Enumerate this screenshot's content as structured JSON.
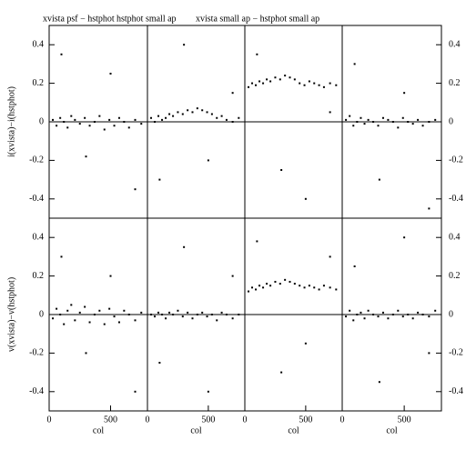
{
  "chart_data": [
    {
      "type": "scatter",
      "title": "xvista psf − hstphot",
      "ylabel": "i(xvista)−i(hstphot)",
      "xlim": [
        0,
        800
      ],
      "ylim": [
        -0.5,
        0.5
      ],
      "yticks": [
        -0.4,
        -0.2,
        0,
        0.2,
        0.4
      ],
      "hline": 0,
      "color": "#000000",
      "x": [
        30,
        60,
        90,
        120,
        150,
        180,
        210,
        250,
        290,
        330,
        370,
        410,
        450,
        490,
        530,
        570,
        610,
        650,
        700,
        750,
        100,
        300,
        500,
        700
      ],
      "y": [
        0.01,
        -0.02,
        0.02,
        0.0,
        -0.03,
        0.03,
        0.01,
        -0.01,
        0.02,
        -0.02,
        0.0,
        0.03,
        -0.04,
        0.01,
        -0.02,
        0.02,
        0.0,
        -0.03,
        0.01,
        -0.01,
        0.35,
        -0.18,
        0.25,
        -0.35
      ]
    },
    {
      "type": "scatter",
      "title": "hstphot small ap",
      "xlim": [
        0,
        800
      ],
      "ylim": [
        -0.5,
        0.5
      ],
      "hline": 0,
      "color": "#000000",
      "x": [
        30,
        60,
        90,
        120,
        150,
        180,
        210,
        250,
        290,
        330,
        370,
        410,
        450,
        490,
        530,
        570,
        610,
        650,
        700,
        750,
        100,
        300,
        500,
        700
      ],
      "y": [
        0.02,
        0.0,
        0.03,
        0.01,
        0.02,
        0.04,
        0.03,
        0.05,
        0.04,
        0.06,
        0.05,
        0.07,
        0.06,
        0.05,
        0.04,
        0.02,
        0.03,
        0.01,
        0.0,
        0.02,
        -0.3,
        0.4,
        -0.2,
        0.15
      ]
    },
    {
      "type": "scatter",
      "title": "xvista small ap − hstphot small ap",
      "xlim": [
        0,
        800
      ],
      "ylim": [
        -0.5,
        0.5
      ],
      "hline": 0,
      "color": "#000000",
      "x": [
        30,
        60,
        90,
        120,
        150,
        180,
        210,
        250,
        290,
        330,
        370,
        410,
        450,
        490,
        530,
        570,
        610,
        650,
        700,
        750,
        100,
        300,
        500,
        700
      ],
      "y": [
        0.18,
        0.2,
        0.19,
        0.21,
        0.2,
        0.22,
        0.21,
        0.23,
        0.22,
        0.24,
        0.23,
        0.22,
        0.2,
        0.19,
        0.21,
        0.2,
        0.19,
        0.18,
        0.2,
        0.19,
        0.35,
        -0.25,
        -0.4,
        0.05
      ]
    },
    {
      "type": "scatter",
      "xlim": [
        0,
        800
      ],
      "ylim": [
        -0.5,
        0.5
      ],
      "y2lim": [
        -0.5,
        0.5
      ],
      "y2ticks": [
        -0.4,
        -0.2,
        0,
        0.2,
        0.4
      ],
      "hline": 0,
      "color": "#000000",
      "x": [
        30,
        60,
        90,
        120,
        150,
        180,
        210,
        250,
        290,
        330,
        370,
        410,
        450,
        490,
        530,
        570,
        610,
        650,
        700,
        750,
        100,
        300,
        500,
        700
      ],
      "y": [
        0.01,
        0.03,
        -0.02,
        0.0,
        0.02,
        -0.01,
        0.01,
        0.0,
        -0.02,
        0.02,
        0.01,
        0.0,
        -0.03,
        0.02,
        0.0,
        -0.01,
        0.01,
        -0.02,
        0.0,
        0.01,
        0.3,
        -0.3,
        0.15,
        -0.45
      ]
    },
    {
      "type": "scatter",
      "ylabel": "v(xvista)−v(hstphot)",
      "xlabel": "col",
      "xlim": [
        0,
        800
      ],
      "ylim": [
        -0.5,
        0.5
      ],
      "yticks": [
        -0.4,
        -0.2,
        0,
        0.2,
        0.4
      ],
      "xticks": [
        0,
        500
      ],
      "hline": 0,
      "color": "#000000",
      "x": [
        30,
        60,
        90,
        120,
        150,
        180,
        210,
        250,
        290,
        330,
        370,
        410,
        450,
        490,
        530,
        570,
        610,
        650,
        700,
        750,
        100,
        300,
        500,
        700
      ],
      "y": [
        -0.02,
        0.03,
        0.0,
        -0.05,
        0.02,
        0.05,
        -0.03,
        0.01,
        0.04,
        -0.04,
        0.0,
        0.02,
        -0.05,
        0.03,
        -0.01,
        -0.04,
        0.02,
        0.0,
        -0.03,
        0.01,
        0.3,
        -0.2,
        0.2,
        -0.4
      ]
    },
    {
      "type": "scatter",
      "xlabel": "col",
      "xlim": [
        0,
        800
      ],
      "ylim": [
        -0.5,
        0.5
      ],
      "xticks": [
        0,
        500
      ],
      "hline": 0,
      "color": "#000000",
      "x": [
        30,
        60,
        90,
        120,
        150,
        180,
        210,
        250,
        290,
        330,
        370,
        410,
        450,
        490,
        530,
        570,
        610,
        650,
        700,
        750,
        100,
        300,
        500,
        700
      ],
      "y": [
        0.0,
        -0.01,
        0.01,
        0.0,
        -0.02,
        0.01,
        0.0,
        0.02,
        -0.01,
        0.01,
        -0.02,
        0.0,
        0.01,
        -0.01,
        0.0,
        -0.03,
        0.01,
        0.0,
        -0.02,
        0.0,
        -0.25,
        0.35,
        -0.4,
        0.2
      ]
    },
    {
      "type": "scatter",
      "xlabel": "col",
      "xlim": [
        0,
        800
      ],
      "ylim": [
        -0.5,
        0.5
      ],
      "xticks": [
        0,
        500
      ],
      "hline": 0,
      "color": "#000000",
      "x": [
        30,
        60,
        90,
        120,
        150,
        180,
        210,
        250,
        290,
        330,
        370,
        410,
        450,
        490,
        530,
        570,
        610,
        650,
        700,
        750,
        100,
        300,
        500,
        700
      ],
      "y": [
        0.12,
        0.14,
        0.13,
        0.15,
        0.14,
        0.16,
        0.15,
        0.17,
        0.16,
        0.18,
        0.17,
        0.16,
        0.15,
        0.14,
        0.15,
        0.14,
        0.13,
        0.15,
        0.14,
        0.13,
        0.38,
        -0.3,
        -0.15,
        0.3
      ]
    },
    {
      "type": "scatter",
      "xlabel": "col",
      "xlim": [
        0,
        800
      ],
      "ylim": [
        -0.5,
        0.5
      ],
      "xticks": [
        0,
        500
      ],
      "y2lim": [
        -0.5,
        0.5
      ],
      "y2ticks": [
        -0.4,
        -0.2,
        0,
        0.2,
        0.4
      ],
      "hline": 0,
      "color": "#000000",
      "x": [
        30,
        60,
        90,
        120,
        150,
        180,
        210,
        250,
        290,
        330,
        370,
        410,
        450,
        490,
        530,
        570,
        610,
        650,
        700,
        750,
        100,
        300,
        500,
        700
      ],
      "y": [
        -0.01,
        0.02,
        -0.03,
        0.0,
        0.01,
        -0.02,
        0.02,
        0.0,
        -0.01,
        0.01,
        -0.02,
        0.0,
        0.02,
        -0.01,
        0.0,
        -0.02,
        0.01,
        0.0,
        -0.01,
        0.02,
        0.25,
        -0.35,
        0.4,
        -0.2
      ]
    }
  ]
}
